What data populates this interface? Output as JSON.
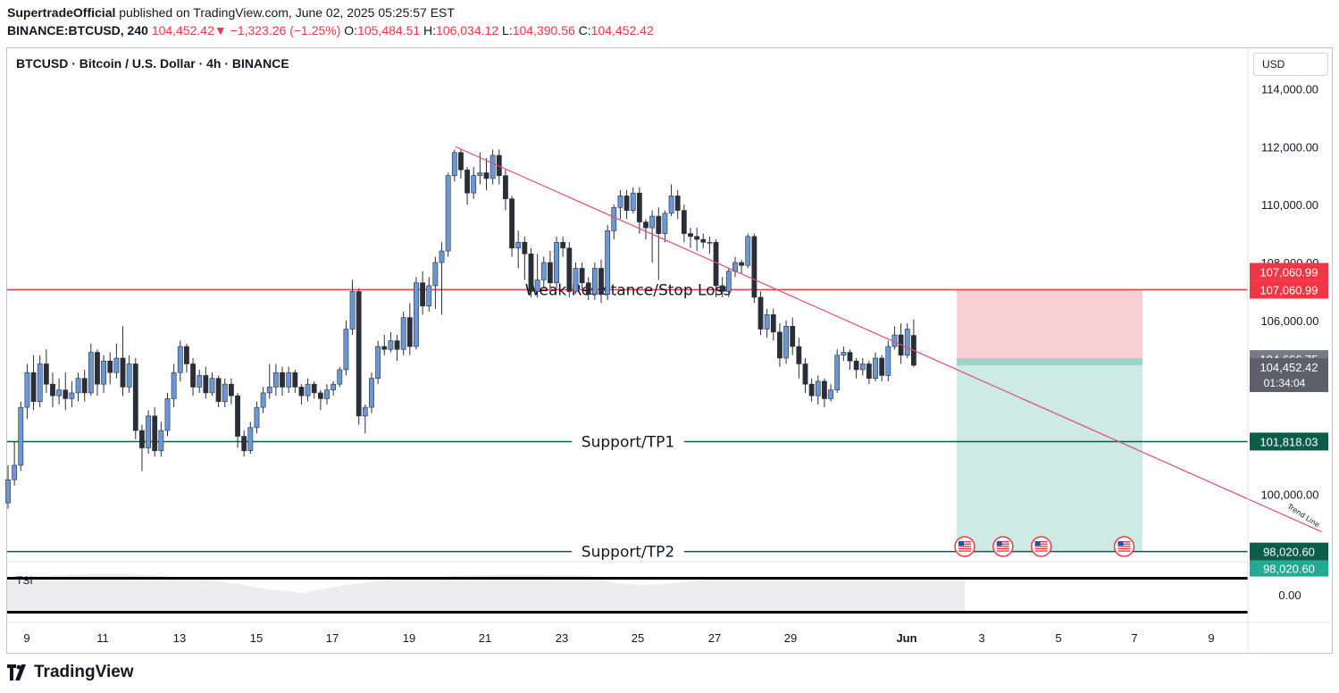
{
  "header": {
    "author": "SupertradeOfficial",
    "published_text": "published on TradingView.com, June 02, 2025 05:25:57 EST",
    "symbol_interval": "BINANCE:BTCUSD, 240",
    "last_price": "104,452.42",
    "change_arrow": "▼",
    "change": "−1,323.26 (−1.25%)",
    "open_label": "O:",
    "open": "105,484.51",
    "high_label": "H:",
    "high": "106,034.12",
    "low_label": "L:",
    "low": "104,390.56",
    "close_label": "C:",
    "close": "104,452.42"
  },
  "chart_title": "BTCUSD · Bitcoin / U.S. Dollar · 4h · BINANCE",
  "currency_button": "USD",
  "footer": {
    "brand": "TradingView"
  },
  "colors": {
    "up": "#6a98d6",
    "down": "#2a2e39",
    "resistance": "#f23645",
    "support": "#0b5d4a",
    "trend": "#e04a7a",
    "risk": "#f7c8cd",
    "reward": "#c8e9e1"
  },
  "chart_data": {
    "type": "candlestick",
    "ylim": [
      97700,
      115400
    ],
    "y_ticks": [
      100000,
      102000,
      104000,
      106000,
      108000,
      110000,
      112000,
      114000
    ],
    "y_tick_labels": [
      "100,000.00",
      "102,000.00",
      "104,000.00",
      "106,000.00",
      "108,000.00",
      "110,000.00",
      "112,000.00",
      "114,000.00"
    ],
    "x_ticks": [
      "9",
      "11",
      "13",
      "15",
      "17",
      "19",
      "21",
      "23",
      "25",
      "27",
      "29",
      "Jun",
      "3",
      "5",
      "7",
      "9"
    ],
    "candles": [
      [
        99700,
        100500,
        99500,
        101000
      ],
      [
        100500,
        101000,
        100300,
        101800
      ],
      [
        101000,
        103000,
        100800,
        103200
      ],
      [
        103000,
        104200,
        102600,
        104500
      ],
      [
        104200,
        103200,
        102900,
        104800
      ],
      [
        103200,
        104500,
        103000,
        104800
      ],
      [
        104500,
        103800,
        103500,
        105000
      ],
      [
        103800,
        103400,
        103000,
        104200
      ],
      [
        103400,
        103600,
        103100,
        104000
      ],
      [
        103600,
        103300,
        102900,
        104200
      ],
      [
        103300,
        103500,
        103000,
        103900
      ],
      [
        103500,
        104000,
        103200,
        104200
      ],
      [
        104000,
        103500,
        103200,
        104300
      ],
      [
        103500,
        104900,
        103400,
        105200
      ],
      [
        104900,
        103800,
        103400,
        105000
      ],
      [
        103800,
        104600,
        103500,
        104800
      ],
      [
        104600,
        104200,
        103800,
        104900
      ],
      [
        104200,
        104700,
        104000,
        105200
      ],
      [
        104700,
        103700,
        103400,
        105800
      ],
      [
        103700,
        104500,
        103500,
        104800
      ],
      [
        104500,
        102200,
        101900,
        104700
      ],
      [
        102200,
        101600,
        100800,
        102400
      ],
      [
        101600,
        102700,
        101400,
        102900
      ],
      [
        102700,
        101500,
        101300,
        103000
      ],
      [
        101500,
        102200,
        101300,
        102500
      ],
      [
        102200,
        103300,
        102000,
        103500
      ],
      [
        103300,
        104200,
        103000,
        104500
      ],
      [
        104200,
        105100,
        103900,
        105300
      ],
      [
        105100,
        104500,
        104200,
        105200
      ],
      [
        104500,
        103700,
        103400,
        104700
      ],
      [
        103700,
        104100,
        103500,
        104300
      ],
      [
        104100,
        103500,
        103300,
        104400
      ],
      [
        103500,
        104000,
        103400,
        104200
      ],
      [
        104000,
        103200,
        103000,
        104100
      ],
      [
        103200,
        103800,
        103000,
        104000
      ],
      [
        103800,
        103400,
        103100,
        104000
      ],
      [
        103400,
        102000,
        101600,
        103500
      ],
      [
        102000,
        101500,
        101300,
        102200
      ],
      [
        101500,
        102300,
        101400,
        102500
      ],
      [
        102300,
        103000,
        102100,
        103200
      ],
      [
        103000,
        103500,
        102800,
        103700
      ],
      [
        103500,
        103700,
        103300,
        104500
      ],
      [
        103700,
        104200,
        103400,
        104500
      ],
      [
        104200,
        103700,
        103400,
        104400
      ],
      [
        103700,
        104200,
        103500,
        104400
      ],
      [
        104200,
        103700,
        103500,
        104300
      ],
      [
        103700,
        103400,
        103100,
        103800
      ],
      [
        103400,
        103800,
        103200,
        104000
      ],
      [
        103800,
        103500,
        103300,
        103900
      ],
      [
        103500,
        103300,
        102900,
        103600
      ],
      [
        103300,
        103600,
        103100,
        103800
      ],
      [
        103600,
        103800,
        103400,
        103900
      ],
      [
        103800,
        104300,
        103700,
        104400
      ],
      [
        104300,
        105700,
        104100,
        106000
      ],
      [
        105700,
        107000,
        105500,
        107400
      ],
      [
        107000,
        102700,
        102400,
        107100
      ],
      [
        102700,
        103000,
        102100,
        103100
      ],
      [
        103000,
        104000,
        102800,
        104200
      ],
      [
        104000,
        105100,
        103800,
        105300
      ],
      [
        105100,
        105000,
        104800,
        105500
      ],
      [
        105000,
        105300,
        104900,
        105600
      ],
      [
        105300,
        105000,
        104600,
        105500
      ],
      [
        105000,
        106100,
        104800,
        106300
      ],
      [
        106100,
        105100,
        104800,
        106600
      ],
      [
        105100,
        107300,
        105000,
        107500
      ],
      [
        107300,
        106500,
        106200,
        107700
      ],
      [
        106500,
        107200,
        106300,
        107500
      ],
      [
        107200,
        108000,
        106400,
        108200
      ],
      [
        108000,
        108400,
        106200,
        108700
      ],
      [
        108400,
        111000,
        108200,
        111100
      ],
      [
        111000,
        111800,
        110800,
        111900
      ],
      [
        111800,
        111200,
        110900,
        111900
      ],
      [
        111200,
        110400,
        110000,
        111300
      ],
      [
        110400,
        111000,
        110200,
        111300
      ],
      [
        111000,
        111100,
        110700,
        111800
      ],
      [
        111100,
        110900,
        110500,
        111600
      ],
      [
        110900,
        111700,
        110700,
        111900
      ],
      [
        111700,
        111000,
        110700,
        111900
      ],
      [
        111000,
        110200,
        109800,
        111200
      ],
      [
        110200,
        108500,
        108200,
        110300
      ],
      [
        108500,
        108700,
        107800,
        109100
      ],
      [
        108700,
        108300,
        107400,
        108900
      ],
      [
        108300,
        107000,
        106800,
        108500
      ],
      [
        107000,
        107400,
        106800,
        108300
      ],
      [
        107400,
        108000,
        107100,
        108200
      ],
      [
        108000,
        107300,
        107100,
        108400
      ],
      [
        107300,
        108700,
        107100,
        108900
      ],
      [
        108700,
        108500,
        108200,
        108900
      ],
      [
        108500,
        107000,
        106800,
        108700
      ],
      [
        107000,
        107800,
        106900,
        108000
      ],
      [
        107800,
        107300,
        107100,
        108000
      ],
      [
        107300,
        106900,
        106700,
        107500
      ],
      [
        106900,
        107800,
        106700,
        108000
      ],
      [
        107800,
        106900,
        106600,
        108100
      ],
      [
        106900,
        109100,
        106700,
        109300
      ],
      [
        109100,
        109900,
        108800,
        110000
      ],
      [
        109900,
        110300,
        109500,
        110500
      ],
      [
        110300,
        109800,
        109500,
        110500
      ],
      [
        109800,
        110400,
        109700,
        110600
      ],
      [
        110400,
        109400,
        109000,
        110600
      ],
      [
        109400,
        109200,
        108800,
        109500
      ],
      [
        109200,
        109600,
        108000,
        109800
      ],
      [
        109600,
        109000,
        107400,
        109900
      ],
      [
        109000,
        109700,
        108700,
        109800
      ],
      [
        109700,
        110300,
        109600,
        110700
      ],
      [
        110300,
        109800,
        109500,
        110500
      ],
      [
        109800,
        109000,
        108700,
        110000
      ],
      [
        109000,
        108900,
        108500,
        109200
      ],
      [
        108900,
        108800,
        108400,
        109200
      ],
      [
        108800,
        108700,
        108500,
        109000
      ],
      [
        108700,
        108700,
        108300,
        108900
      ],
      [
        108700,
        107200,
        106800,
        108800
      ],
      [
        107200,
        107000,
        106800,
        107500
      ],
      [
        107000,
        107700,
        106800,
        107800
      ],
      [
        107700,
        108000,
        107500,
        108200
      ],
      [
        108000,
        107900,
        107600,
        108100
      ],
      [
        107900,
        108900,
        107800,
        109000
      ],
      [
        108900,
        106800,
        106600,
        109000
      ],
      [
        106800,
        105700,
        105500,
        107000
      ],
      [
        105700,
        106200,
        105400,
        106400
      ],
      [
        106200,
        105600,
        105300,
        106400
      ],
      [
        105600,
        104700,
        104400,
        105900
      ],
      [
        104700,
        105800,
        104500,
        106000
      ],
      [
        105800,
        105100,
        104800,
        106100
      ],
      [
        105100,
        104500,
        104000,
        105400
      ],
      [
        104500,
        103800,
        103500,
        104700
      ],
      [
        103800,
        103400,
        103200,
        104000
      ],
      [
        103400,
        103900,
        103100,
        104100
      ],
      [
        103900,
        103300,
        103000,
        104000
      ],
      [
        103300,
        103600,
        103200,
        103800
      ],
      [
        103600,
        104800,
        103500,
        105000
      ],
      [
        104800,
        104900,
        104600,
        105100
      ],
      [
        104900,
        104600,
        104300,
        105000
      ],
      [
        104600,
        104300,
        104000,
        104700
      ],
      [
        104300,
        104500,
        104100,
        104700
      ],
      [
        104500,
        104000,
        103800,
        104600
      ],
      [
        104000,
        104700,
        103900,
        104900
      ],
      [
        104700,
        104100,
        103900,
        104800
      ],
      [
        104100,
        105100,
        103900,
        105300
      ],
      [
        105100,
        105500,
        105000,
        105800
      ],
      [
        105500,
        104800,
        104500,
        105900
      ],
      [
        104800,
        105700,
        104700,
        105900
      ],
      [
        105484.51,
        104452.42,
        104390.56,
        106034.12
      ]
    ],
    "current_price": 104452.42,
    "countdown": "01:34:04",
    "levels": [
      {
        "name": "Weak Resistance/Stop Loss",
        "price": 107060.99,
        "price_label": "107,060.99",
        "color": "#f23645"
      },
      {
        "name": "Support/TP1",
        "price": 101818.03,
        "price_label": "101,818.03",
        "color": "#0b5d4a"
      },
      {
        "name": "Support/TP2",
        "price": 98020.6,
        "price_label": "98,020.60",
        "color": "#0b5d4a"
      }
    ],
    "position": {
      "entry": 104666.75,
      "entry_label": "104,666.75",
      "stop": 107060.99,
      "target": 98020.6
    },
    "trend_line": {
      "label": "Trend Line",
      "start": {
        "candle": 70,
        "price": 112000
      },
      "end": {
        "candle": 206,
        "price": 98700
      }
    },
    "events": [
      {
        "candle": 150
      },
      {
        "candle": 156
      },
      {
        "candle": 162
      },
      {
        "candle": 175
      }
    ],
    "indicator": {
      "name": "TSI",
      "tick_label": "0.00"
    },
    "extra_axis_labels": [
      "107,060.99",
      "98,020.60"
    ]
  }
}
